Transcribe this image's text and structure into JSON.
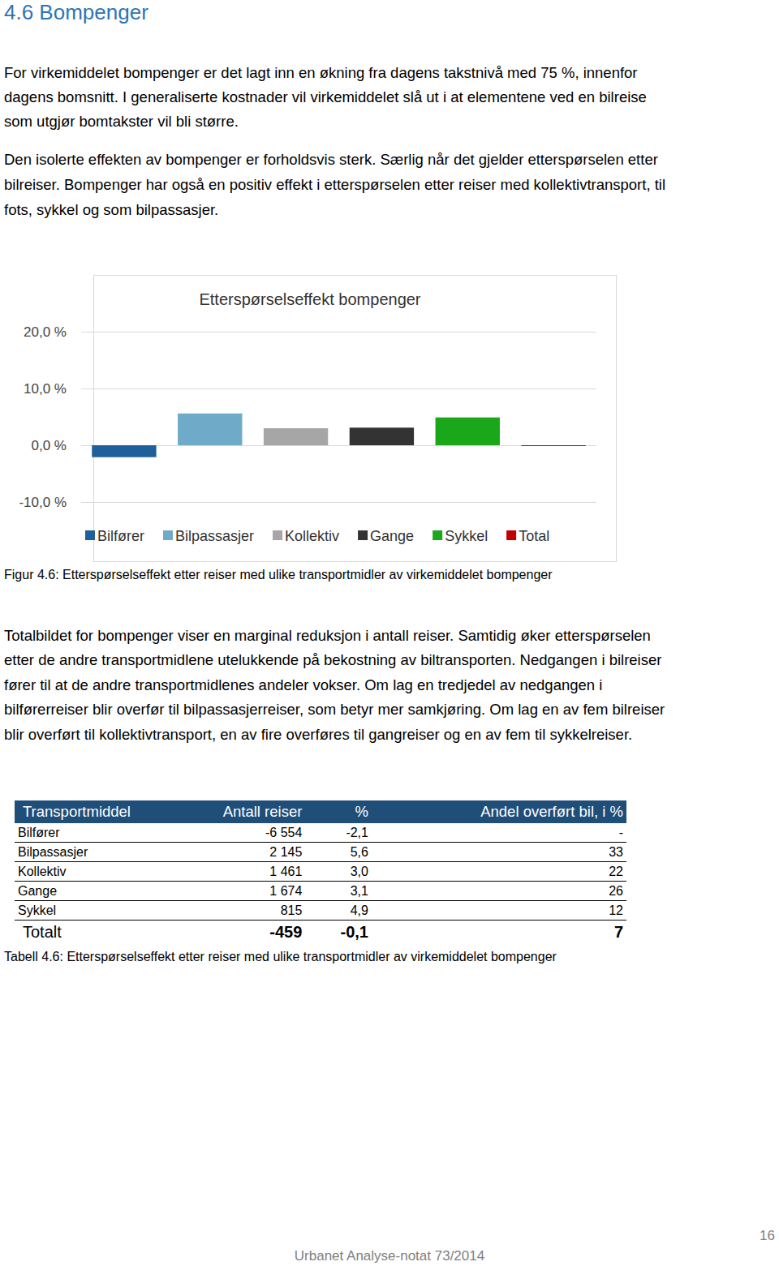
{
  "heading": "4.6 Bompenger",
  "paragraphs": [
    [
      "For virkemiddelet bompenger er det lagt inn en økning fra dagens takstnivå med 75 %, innenfor",
      "dagens bomsnitt. I generaliserte kostnader vil virkemiddelet slå ut i at elementene ved en bilreise",
      "som utgjør bomtakster vil bli større."
    ],
    [
      "Den isolerte effekten av bompenger er forholdsvis sterk. Særlig når det gjelder etterspørselen etter",
      "bilreiser. Bompenger har også en positiv effekt i etterspørselen etter reiser med kollektivtransport, til",
      "fots, sykkel og som bilpassasjer."
    ]
  ],
  "chart_data": {
    "type": "bar",
    "title": "Etterspørselseffekt bompenger",
    "categories": [
      "Bilfører",
      "Bilpassasjer",
      "Kollektiv",
      "Gange",
      "Sykkel",
      "Total"
    ],
    "values": [
      -2.1,
      5.6,
      3.0,
      3.1,
      4.9,
      -0.1
    ],
    "colors": [
      "#1f5f9a",
      "#6fabc9",
      "#a6a6a6",
      "#333333",
      "#1aa81a",
      "#c00000"
    ],
    "ylim": [
      -10,
      20
    ],
    "yticks": [
      {
        "value": -10,
        "label": "-10,0 %"
      },
      {
        "value": 0,
        "label": "0,0 %"
      },
      {
        "value": 10,
        "label": "10,0 %"
      },
      {
        "value": 20,
        "label": "20,0 %"
      }
    ],
    "grid": true,
    "tick_labels": "y",
    "legend": "bottom"
  },
  "figure_caption": "Figur 4.6: Etterspørselseffekt etter reiser med ulike transportmidler av virkemiddelet bompenger",
  "paragraph_after": [
    "Totalbildet for bompenger viser en marginal reduksjon i antall reiser. Samtidig øker etterspørselen",
    "etter de andre transportmidlene utelukkende på bekostning av biltransporten. Nedgangen i bilreiser",
    "fører til at de andre transportmidlenes andeler vokser. Om lag en tredjedel av nedgangen i",
    "bilførerreiser blir overfør til bilpassasjerreiser, som betyr mer samkjøring. Om lag en av fem bilreiser",
    "blir overført til kollektivtransport, en av fire overføres til gangreiser og en av fem til sykkelreiser."
  ],
  "table": {
    "header": [
      "Transportmiddel",
      "Antall reiser",
      "%",
      "Andel overført bil, i %"
    ],
    "rows": [
      [
        "Bilfører",
        "-6 554",
        "-2,1",
        "-"
      ],
      [
        "Bilpassasjer",
        "2 145",
        "5,6",
        "33"
      ],
      [
        "Kollektiv",
        "1 461",
        "3,0",
        "22"
      ],
      [
        "Gange",
        "1 674",
        "3,1",
        "26"
      ],
      [
        "Sykkel",
        "815",
        "4,9",
        "12"
      ]
    ],
    "total_row": [
      "Totalt",
      "-459",
      "-0,1",
      "7"
    ]
  },
  "table_caption": "Tabell 4.6: Etterspørselseffekt etter reiser med ulike transportmidler av virkemiddelet bompenger",
  "footer": "Urbanet Analyse-notat 73/2014",
  "page_number": "16"
}
